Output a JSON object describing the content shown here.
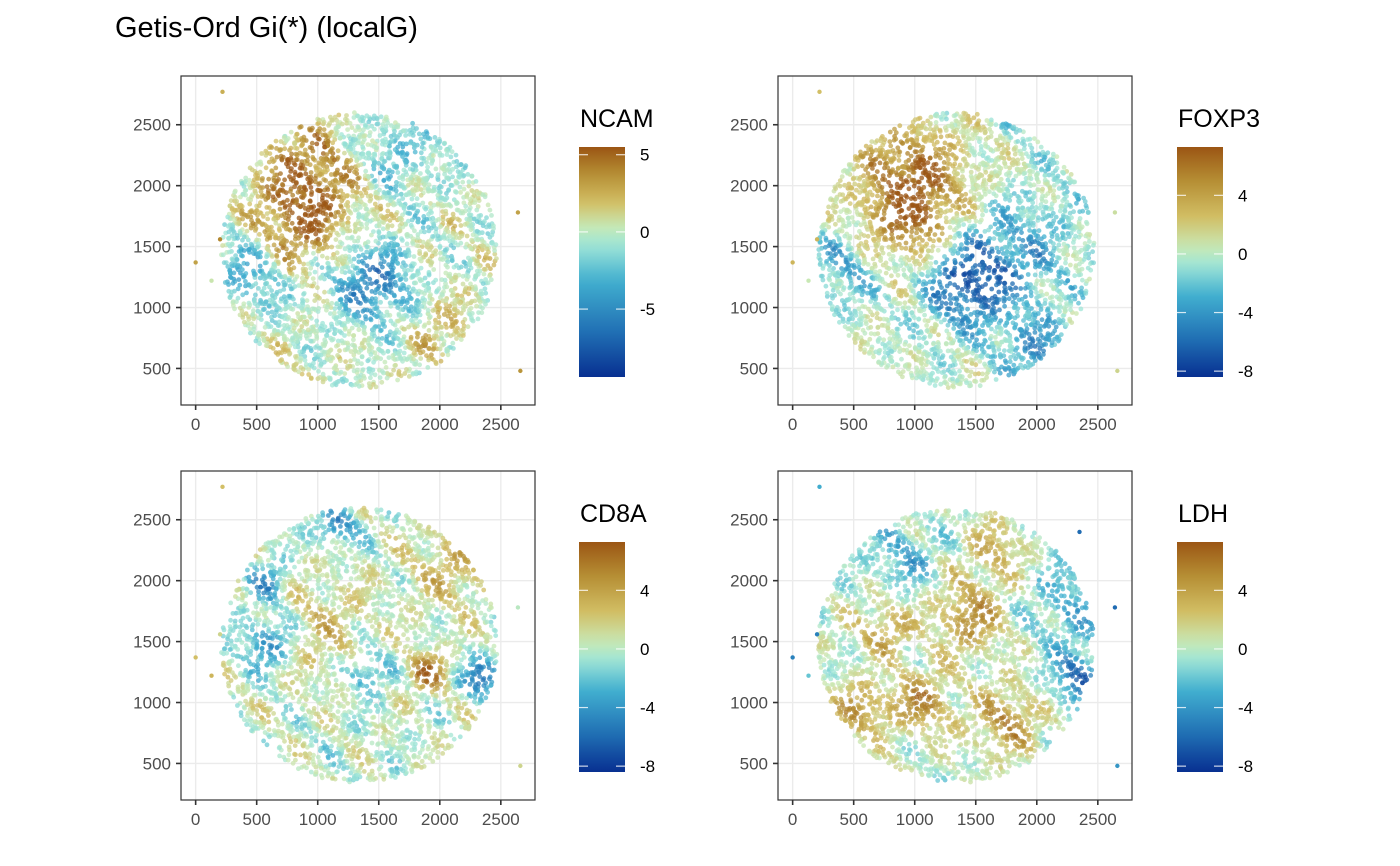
{
  "title": "Getis-Ord Gi(*) (localG)",
  "chart_data": [
    {
      "type": "scatter",
      "title": "NCAM",
      "legend_title": "NCAM",
      "legend_placement": "right",
      "xlabel": "",
      "ylabel": "",
      "xlim": [
        -120,
        2780
      ],
      "ylim": [
        200,
        2900
      ],
      "xticks": [
        0,
        500,
        1000,
        1500,
        2000,
        2500
      ],
      "yticks": [
        500,
        1000,
        1500,
        2000,
        2500
      ],
      "grid": true,
      "color_range": [
        -9.4,
        5.5
      ],
      "color_ticks": [
        5,
        0,
        -5
      ],
      "tissue_center": [
        1340,
        1470
      ],
      "tissue_radius": 1130,
      "hotspots": [
        {
          "x": 950,
          "y": 2050,
          "value": 5,
          "spread": 330
        },
        {
          "x": 800,
          "y": 1600,
          "value": 3.5,
          "spread": 220
        },
        {
          "x": 1450,
          "y": 1200,
          "value": -6,
          "spread": 220
        },
        {
          "x": 1600,
          "y": 2250,
          "value": -3,
          "spread": 250
        },
        {
          "x": 450,
          "y": 1300,
          "value": -3.5,
          "spread": 230
        },
        {
          "x": 2000,
          "y": 800,
          "value": 2,
          "spread": 200
        }
      ],
      "outliers": [
        [
          220,
          2770,
          2.5
        ],
        [
          0,
          1370,
          3
        ],
        [
          130,
          1220,
          0.5
        ],
        [
          2640,
          1780,
          3
        ],
        [
          2660,
          480,
          3.5
        ],
        [
          200,
          1560,
          4
        ]
      ]
    },
    {
      "type": "scatter",
      "title": "FOXP3",
      "legend_title": "FOXP3",
      "legend_placement": "right",
      "xlabel": "",
      "ylabel": "",
      "xlim": [
        -120,
        2780
      ],
      "ylim": [
        200,
        2900
      ],
      "xticks": [
        0,
        500,
        1000,
        1500,
        2000,
        2500
      ],
      "yticks": [
        500,
        1000,
        1500,
        2000,
        2500
      ],
      "grid": true,
      "color_range": [
        -8.4,
        7.3
      ],
      "color_ticks": [
        4,
        0,
        -4,
        -8
      ],
      "tissue_center": [
        1340,
        1470
      ],
      "tissue_radius": 1130,
      "hotspots": [
        {
          "x": 980,
          "y": 2050,
          "value": 7,
          "spread": 300
        },
        {
          "x": 950,
          "y": 1650,
          "value": 4,
          "spread": 220
        },
        {
          "x": 1450,
          "y": 1200,
          "value": -7,
          "spread": 250
        },
        {
          "x": 1900,
          "y": 1500,
          "value": -3,
          "spread": 300
        },
        {
          "x": 2000,
          "y": 650,
          "value": -4,
          "spread": 200
        },
        {
          "x": 400,
          "y": 1300,
          "value": -3,
          "spread": 200
        }
      ],
      "outliers": [
        [
          220,
          2770,
          2.5
        ],
        [
          0,
          1370,
          3
        ],
        [
          130,
          1220,
          0.5
        ],
        [
          2640,
          1780,
          1
        ],
        [
          2660,
          480,
          1.5
        ],
        [
          200,
          1560,
          3
        ]
      ]
    },
    {
      "type": "scatter",
      "title": "CD8A",
      "legend_title": "CD8A",
      "legend_placement": "right",
      "xlabel": "",
      "ylabel": "",
      "xlim": [
        -120,
        2780
      ],
      "ylim": [
        200,
        2900
      ],
      "xticks": [
        0,
        500,
        1000,
        1500,
        2000,
        2500
      ],
      "yticks": [
        500,
        1000,
        1500,
        2000,
        2500
      ],
      "grid": true,
      "color_range": [
        -8.4,
        7.3
      ],
      "color_ticks": [
        4,
        0,
        -4,
        -8
      ],
      "tissue_center": [
        1340,
        1470
      ],
      "tissue_radius": 1130,
      "hotspots": [
        {
          "x": 1900,
          "y": 1250,
          "value": 6.5,
          "spread": 110
        },
        {
          "x": 2100,
          "y": 2100,
          "value": 3,
          "spread": 250
        },
        {
          "x": 1000,
          "y": 1600,
          "value": 2.5,
          "spread": 300
        },
        {
          "x": 600,
          "y": 1500,
          "value": -5,
          "spread": 160
        },
        {
          "x": 1150,
          "y": 2450,
          "value": -5,
          "spread": 110
        },
        {
          "x": 2350,
          "y": 1200,
          "value": -6,
          "spread": 110
        },
        {
          "x": 1400,
          "y": 1250,
          "value": -4,
          "spread": 120
        },
        {
          "x": 600,
          "y": 2000,
          "value": -4,
          "spread": 120
        }
      ],
      "outliers": [
        [
          220,
          2770,
          2.5
        ],
        [
          0,
          1370,
          2.5
        ],
        [
          130,
          1220,
          3
        ],
        [
          2640,
          1780,
          0
        ],
        [
          2660,
          480,
          1.5
        ],
        [
          200,
          1560,
          1.5
        ]
      ]
    },
    {
      "type": "scatter",
      "title": "LDH",
      "legend_title": "LDH",
      "legend_placement": "right",
      "xlabel": "",
      "ylabel": "",
      "xlim": [
        -120,
        2780
      ],
      "ylim": [
        200,
        2900
      ],
      "xticks": [
        0,
        500,
        1000,
        1500,
        2000,
        2500
      ],
      "yticks": [
        500,
        1000,
        1500,
        2000,
        2500
      ],
      "grid": true,
      "color_range": [
        -8.4,
        7.3
      ],
      "color_ticks": [
        4,
        0,
        -4,
        -8
      ],
      "tissue_center": [
        1340,
        1470
      ],
      "tissue_radius": 1130,
      "hotspots": [
        {
          "x": 1450,
          "y": 1700,
          "value": 5,
          "spread": 200
        },
        {
          "x": 1050,
          "y": 1000,
          "value": 5,
          "spread": 180
        },
        {
          "x": 1750,
          "y": 850,
          "value": 5,
          "spread": 180
        },
        {
          "x": 550,
          "y": 950,
          "value": 4.5,
          "spread": 150
        },
        {
          "x": 750,
          "y": 1600,
          "value": 4,
          "spread": 160
        },
        {
          "x": 1650,
          "y": 2250,
          "value": 3.5,
          "spread": 160
        },
        {
          "x": 2350,
          "y": 1200,
          "value": -6,
          "spread": 150
        },
        {
          "x": 2300,
          "y": 1800,
          "value": -3,
          "spread": 250
        },
        {
          "x": 900,
          "y": 2200,
          "value": -3,
          "spread": 200
        }
      ],
      "outliers": [
        [
          220,
          2770,
          -3
        ],
        [
          0,
          1370,
          -5
        ],
        [
          130,
          1220,
          -2
        ],
        [
          2640,
          1780,
          -6
        ],
        [
          2660,
          480,
          -4
        ],
        [
          200,
          1560,
          -5
        ],
        [
          2350,
          2400,
          -6
        ]
      ]
    }
  ]
}
